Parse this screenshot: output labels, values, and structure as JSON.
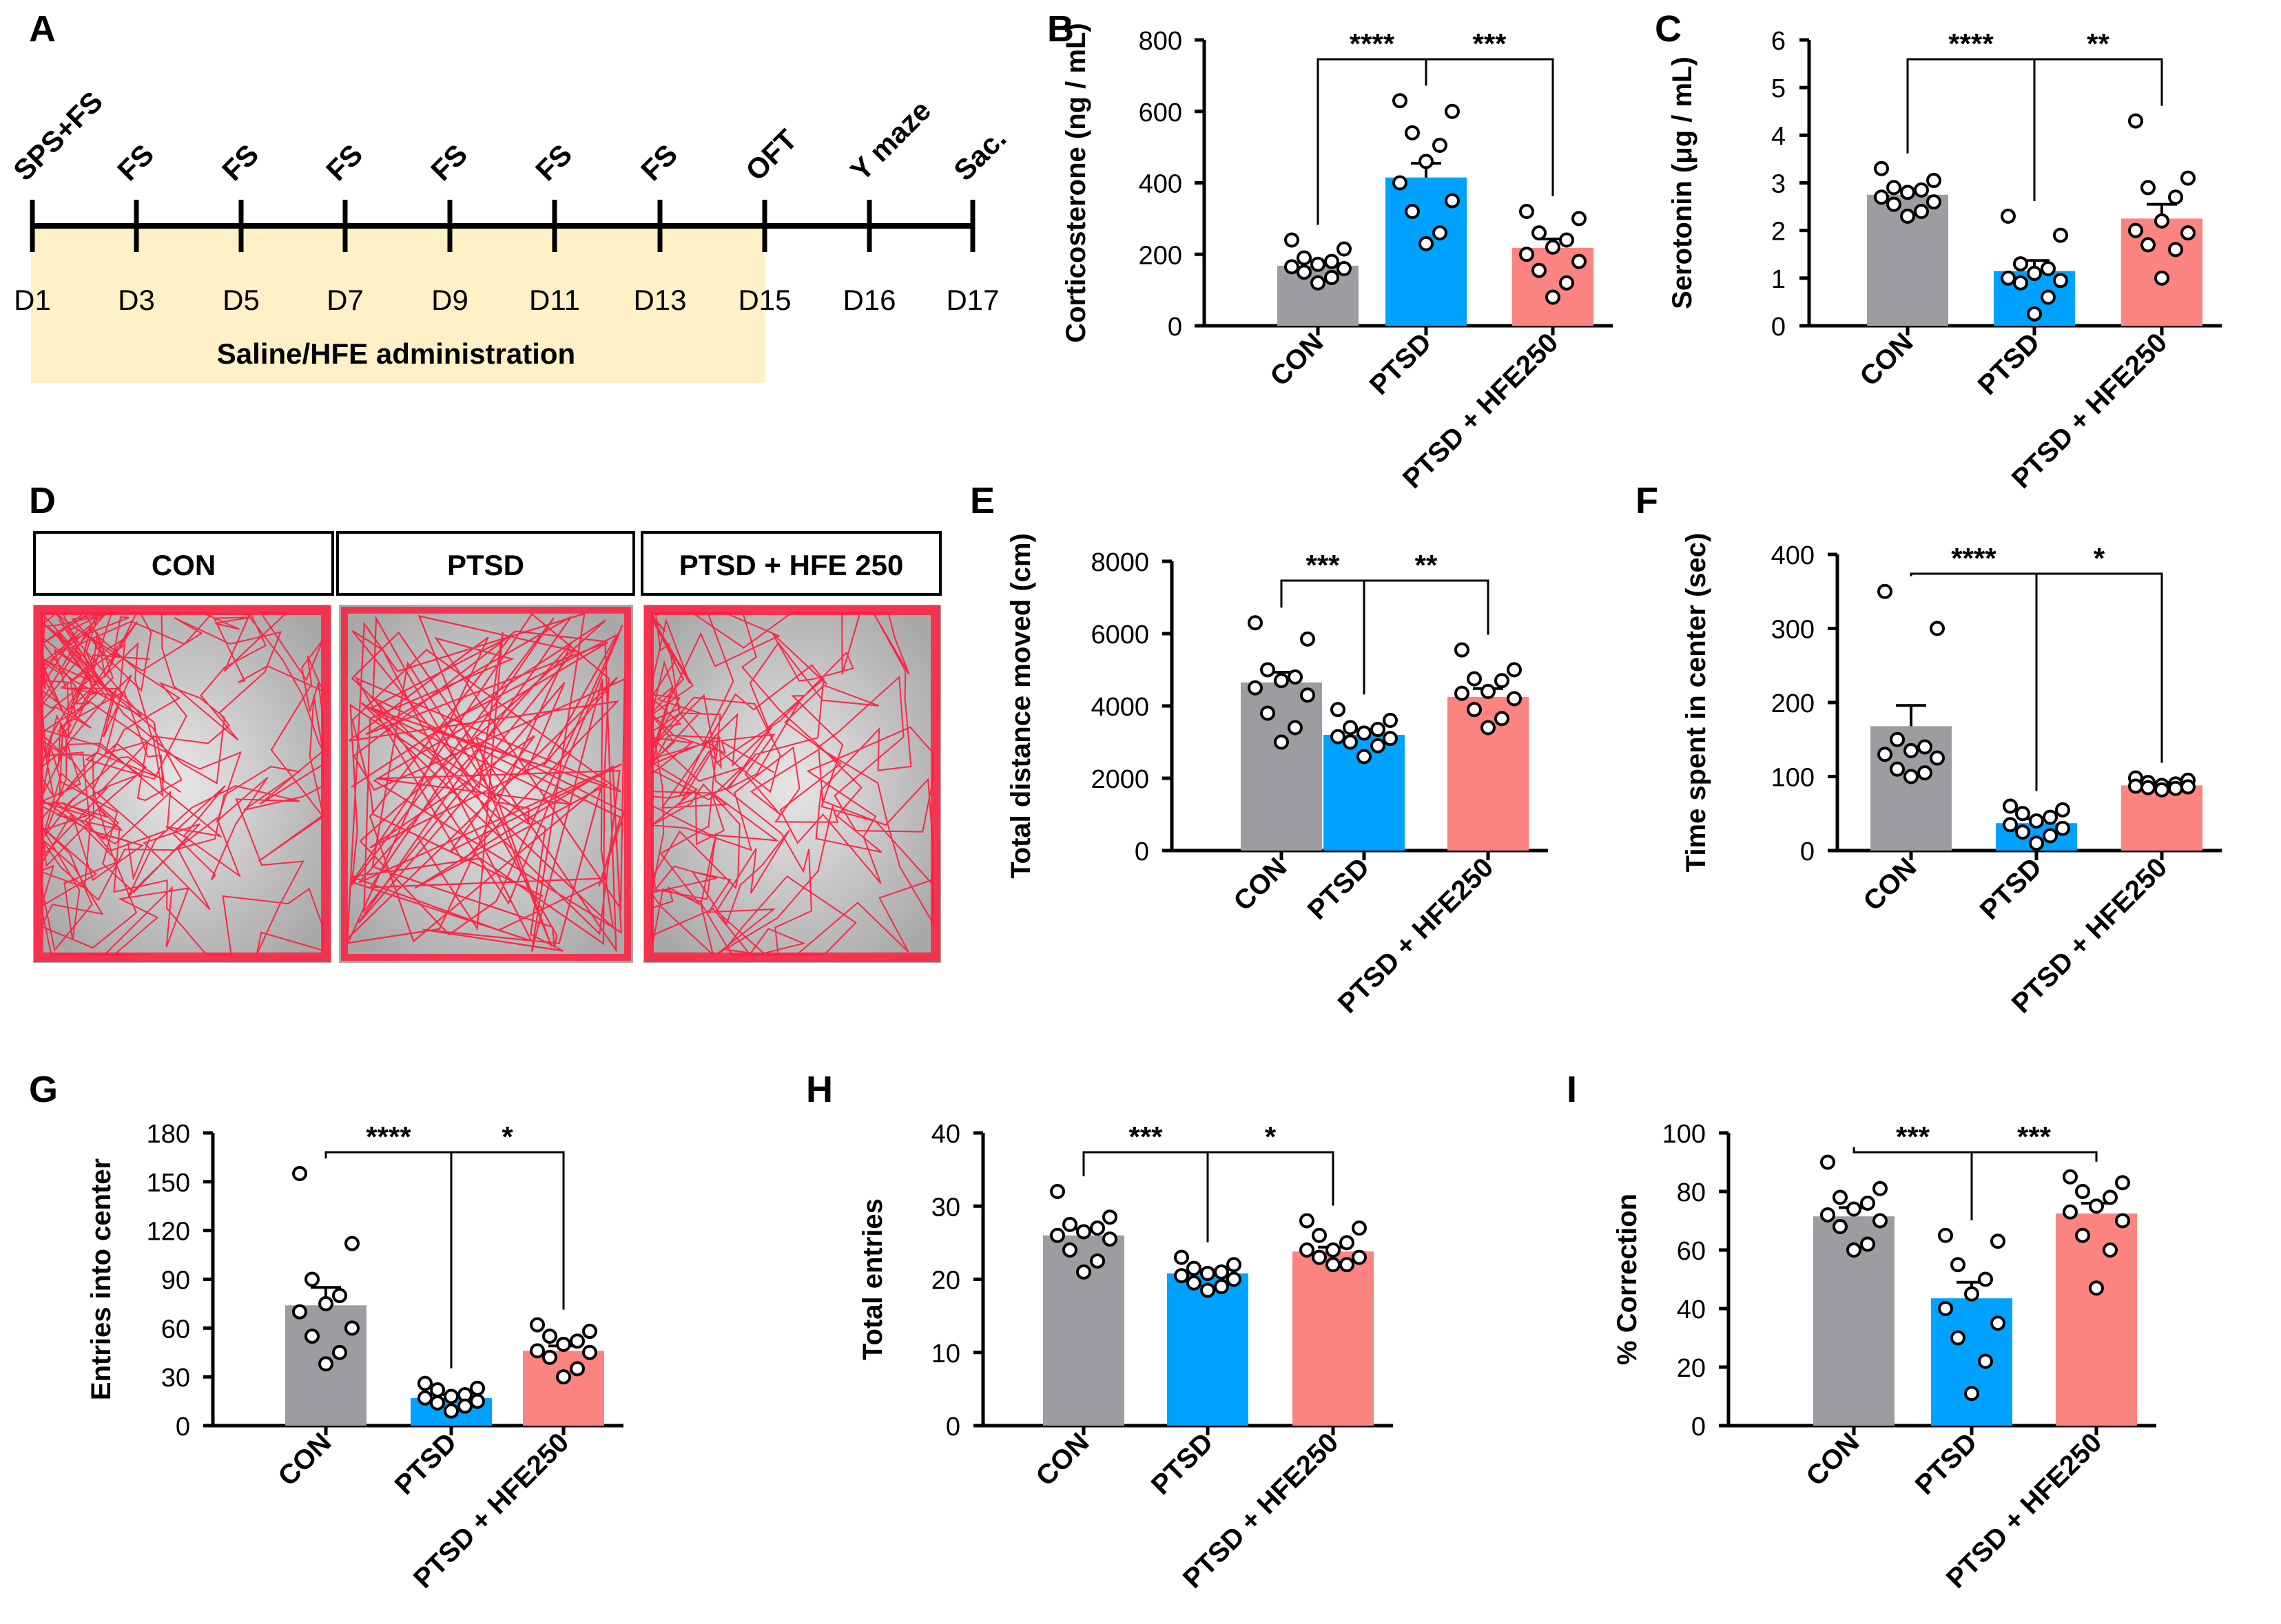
{
  "figure": {
    "panel_letters": {
      "A": "A",
      "B": "B",
      "C": "C",
      "D": "D",
      "E": "E",
      "F": "F",
      "G": "G",
      "H": "H",
      "I": "I"
    },
    "colors": {
      "CON": "#9d9ca1",
      "PTSD": "#00a2ff",
      "HFE": "#fb8380",
      "band": "#fdefc6",
      "track": "#ff1f3f",
      "axis": "#000000"
    }
  },
  "timeline": {
    "event_labels": [
      "SPS+FS",
      "FS",
      "FS",
      "FS",
      "FS",
      "FS",
      "FS",
      "OFT",
      "Y maze",
      "Sac."
    ],
    "day_labels": [
      "D1",
      "D3",
      "D5",
      "D7",
      "D9",
      "D11",
      "D13",
      "D15",
      "D16",
      "D17"
    ],
    "band_label": "Saline/HFE administration"
  },
  "tracks": {
    "labels": [
      "CON",
      "PTSD",
      "PTSD + HFE 250"
    ]
  },
  "chart_data": [
    {
      "id": "B",
      "type": "bar",
      "categories": [
        "CON",
        "PTSD",
        "PTSD + HFE250"
      ],
      "values": [
        168,
        415,
        218
      ],
      "sem": [
        14,
        40,
        25
      ],
      "points": [
        [
          240,
          215,
          190,
          180,
          172,
          165,
          160,
          150,
          135,
          120
        ],
        [
          630,
          600,
          540,
          505,
          460,
          400,
          350,
          320,
          260,
          230
        ],
        [
          320,
          300,
          260,
          240,
          220,
          200,
          180,
          155,
          120,
          80
        ]
      ],
      "ylabel": "Corticosterone (ng / mL)",
      "ylim": [
        0,
        800
      ],
      "yticks": [
        "0",
        "200",
        "400",
        "600",
        "800"
      ],
      "sig": [
        {
          "label": "****",
          "a": 0,
          "b": 1
        },
        {
          "label": "***",
          "a": 1,
          "b": 2
        }
      ]
    },
    {
      "id": "C",
      "type": "bar",
      "categories": [
        "CON",
        "PTSD",
        "PTSD + HFE250"
      ],
      "values": [
        2.75,
        1.15,
        2.25
      ],
      "sem": [
        0.1,
        0.22,
        0.3
      ],
      "points": [
        [
          3.3,
          3.05,
          2.9,
          2.85,
          2.8,
          2.7,
          2.6,
          2.55,
          2.4,
          2.3
        ],
        [
          2.3,
          1.9,
          1.3,
          1.2,
          1.1,
          1.0,
          0.95,
          0.9,
          0.6,
          0.25
        ],
        [
          4.3,
          3.1,
          2.9,
          2.7,
          2.2,
          2.0,
          1.95,
          1.7,
          1.6,
          1.0
        ]
      ],
      "ylabel": "Serotonin (μg / mL)",
      "ylim": [
        0,
        6
      ],
      "yticks": [
        "0",
        "1",
        "2",
        "3",
        "4",
        "5",
        "6"
      ],
      "sig": [
        {
          "label": "****",
          "a": 0,
          "b": 1
        },
        {
          "label": "**",
          "a": 1,
          "b": 2
        }
      ]
    },
    {
      "id": "E",
      "type": "bar",
      "categories": [
        "CON",
        "PTSD",
        "PTSD + HFE250"
      ],
      "values": [
        4650,
        3200,
        4250
      ],
      "sem": [
        280,
        150,
        230
      ],
      "points": [
        [
          6300,
          5850,
          5000,
          4800,
          4700,
          4500,
          4300,
          3800,
          3400,
          3000
        ],
        [
          3900,
          3600,
          3400,
          3350,
          3250,
          3150,
          3100,
          3000,
          2900,
          2600
        ],
        [
          5550,
          5000,
          4750,
          4700,
          4400,
          4350,
          4200,
          3900,
          3650,
          3400
        ]
      ],
      "ylabel": "Total distance moved (cm)",
      "ylim": [
        0,
        8000
      ],
      "yticks": [
        "0",
        "2000",
        "4000",
        "6000",
        "8000"
      ],
      "sig": [
        {
          "label": "***",
          "a": 0,
          "b": 1
        },
        {
          "label": "**",
          "a": 1,
          "b": 2
        }
      ]
    },
    {
      "id": "F",
      "type": "bar",
      "categories": [
        "CON",
        "PTSD",
        "PTSD + HFE250"
      ],
      "values": [
        168,
        37,
        88
      ],
      "sem": [
        28,
        6,
        4
      ],
      "points": [
        [
          350,
          300,
          150,
          140,
          135,
          130,
          125,
          110,
          105,
          100
        ],
        [
          60,
          55,
          50,
          45,
          40,
          35,
          30,
          25,
          20,
          10
        ],
        [
          98,
          95,
          92,
          90,
          88,
          87,
          86,
          85,
          84,
          82
        ]
      ],
      "ylabel": "Time spent in center (sec)",
      "ylim": [
        0,
        400
      ],
      "yticks": [
        "0",
        "100",
        "200",
        "300",
        "400"
      ],
      "sig": [
        {
          "label": "****",
          "a": 0,
          "b": 1
        },
        {
          "label": "*",
          "a": 1,
          "b": 2
        }
      ]
    },
    {
      "id": "G",
      "type": "bar",
      "categories": [
        "CON",
        "PTSD",
        "PTSD + HFE250"
      ],
      "values": [
        74,
        17,
        46
      ],
      "sem": [
        11,
        2,
        3
      ],
      "points": [
        [
          155,
          112,
          90,
          80,
          75,
          70,
          60,
          55,
          45,
          38
        ],
        [
          26,
          23,
          22,
          19,
          18,
          17,
          15,
          14,
          12,
          9
        ],
        [
          62,
          58,
          55,
          52,
          50,
          46,
          45,
          42,
          35,
          30
        ]
      ],
      "ylabel": "Entries into center",
      "ylim": [
        0,
        180
      ],
      "yticks": [
        "0",
        "30",
        "60",
        "90",
        "120",
        "150",
        "180"
      ],
      "sig": [
        {
          "label": "****",
          "a": 0,
          "b": 1
        },
        {
          "label": "*",
          "a": 1,
          "b": 2
        }
      ]
    },
    {
      "id": "H",
      "type": "bar",
      "categories": [
        "CON",
        "PTSD",
        "PTSD + HFE250"
      ],
      "values": [
        26,
        20.8,
        23.8
      ],
      "sem": [
        0.9,
        0.5,
        0.6
      ],
      "points": [
        [
          32,
          28.5,
          27.5,
          27,
          26.5,
          26,
          25.5,
          24,
          22.5,
          21
        ],
        [
          23,
          22,
          21.5,
          21,
          20.8,
          20.5,
          20,
          19.5,
          19,
          18.5
        ],
        [
          28,
          27,
          26,
          25,
          24,
          24,
          23,
          23,
          22,
          22
        ]
      ],
      "ylabel": "Total entries",
      "ylim": [
        0,
        40
      ],
      "yticks": [
        "0",
        "10",
        "20",
        "30",
        "40"
      ],
      "sig": [
        {
          "label": "***",
          "a": 0,
          "b": 1
        },
        {
          "label": "*",
          "a": 1,
          "b": 2
        }
      ]
    },
    {
      "id": "I",
      "type": "bar",
      "categories": [
        "CON",
        "PTSD",
        "PTSD + HFE250"
      ],
      "values": [
        71.5,
        43.5,
        72.5
      ],
      "sem": [
        3,
        5.5,
        3.5
      ],
      "points": [
        [
          90,
          81,
          78,
          76,
          74,
          72,
          70,
          68,
          62,
          60
        ],
        [
          65,
          63,
          55,
          50,
          45,
          40,
          35,
          30,
          22,
          11
        ],
        [
          85,
          83,
          80,
          78,
          75,
          73,
          70,
          65,
          60,
          47
        ]
      ],
      "ylabel": "% Correction",
      "ylim": [
        0,
        100
      ],
      "yticks": [
        "0",
        "20",
        "40",
        "60",
        "80",
        "100"
      ],
      "sig": [
        {
          "label": "***",
          "a": 0,
          "b": 1
        },
        {
          "label": "***",
          "a": 1,
          "b": 2
        }
      ]
    }
  ]
}
